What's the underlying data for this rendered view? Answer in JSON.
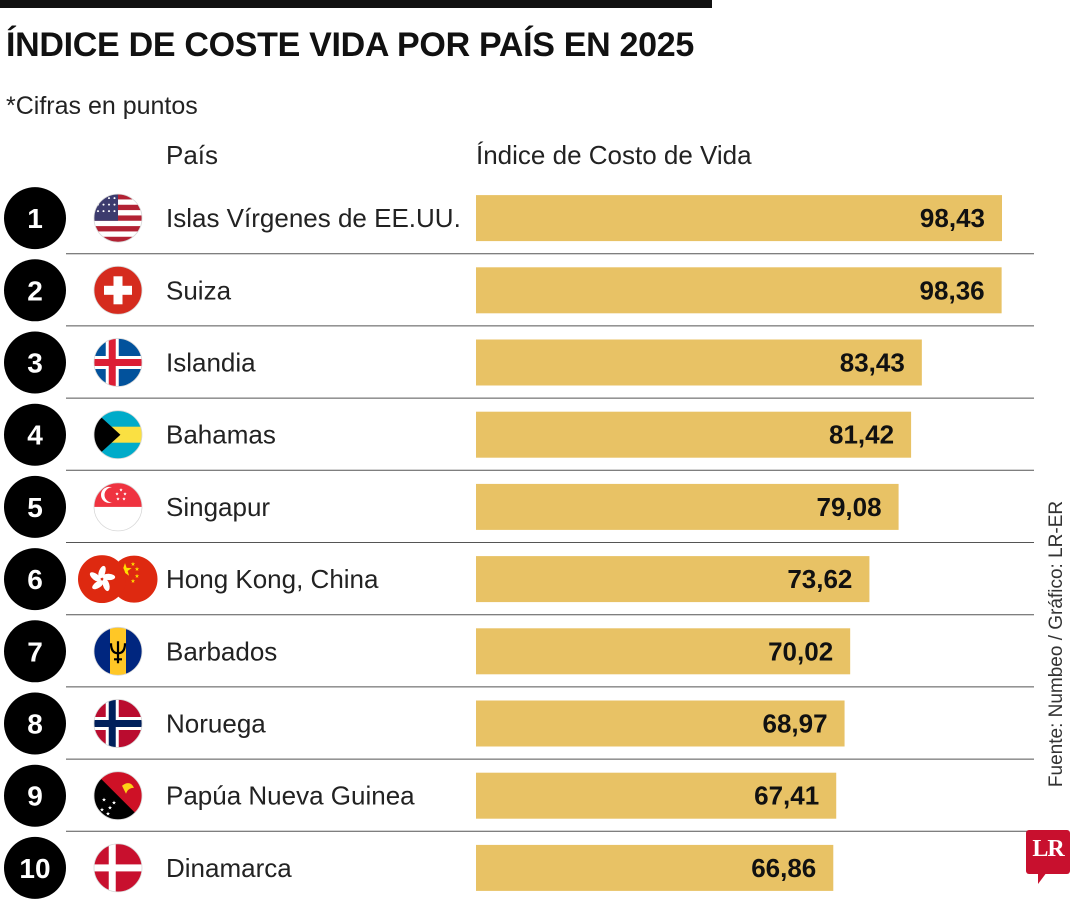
{
  "header": {
    "title": "ÍNDICE DE COSTE VIDA POR PAÍS EN 2025",
    "subtitle": "*Cifras en puntos",
    "country_column": "País",
    "index_column": "Índice de Costo de Vida"
  },
  "source": "Fuente: Numbeo / Gráfico: LR-ER",
  "logo": {
    "text": "LR"
  },
  "colors": {
    "bar": "#e8c265",
    "badge": "#000000",
    "divider": "#555555",
    "logo": "#c8102e"
  },
  "chart_data": {
    "type": "bar",
    "orientation": "horizontal",
    "title": "ÍNDICE DE COSTE VIDA POR PAÍS EN 2025",
    "subtitle": "*Cifras en puntos",
    "xlabel": "Índice de Costo de Vida",
    "ylabel": "País",
    "value_format": "comma-decimal",
    "categories": [
      "Islas Vírgenes de EE.UU.",
      "Suiza",
      "Islandia",
      "Bahamas",
      "Singapur",
      "Hong Kong, China",
      "Barbados",
      "Noruega",
      "Papúa Nueva Guinea",
      "Dinamarca"
    ],
    "ranks": [
      "1",
      "2",
      "3",
      "4",
      "5",
      "6",
      "7",
      "8",
      "9",
      "10"
    ],
    "values": [
      98.43,
      98.36,
      83.43,
      81.42,
      79.08,
      73.62,
      70.02,
      68.97,
      67.41,
      66.86
    ],
    "value_labels": [
      "98,43",
      "98,36",
      "83,43",
      "81,42",
      "79,08",
      "73,62",
      "70,02",
      "68,97",
      "67,41",
      "66,86"
    ],
    "flag_icons": [
      "us-flag-icon",
      "switzerland-flag-icon",
      "iceland-flag-icon",
      "bahamas-flag-icon",
      "singapore-flag-icon",
      "hong-kong-china-flags-icon",
      "barbados-flag-icon",
      "norway-flag-icon",
      "papua-new-guinea-flag-icon",
      "denmark-flag-icon"
    ],
    "xlim": [
      0,
      98.43
    ]
  }
}
